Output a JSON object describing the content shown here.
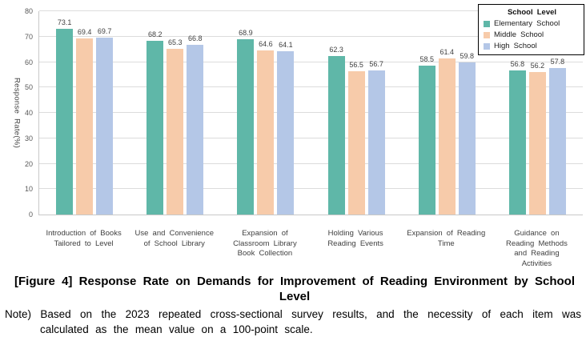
{
  "chart_data": {
    "type": "bar",
    "title": "",
    "xlabel": "",
    "ylabel": "Response Rate(%)",
    "ylim": [
      0,
      80
    ],
    "yticks": [
      0,
      10,
      20,
      30,
      40,
      50,
      60,
      70,
      80
    ],
    "grid": "horizontal",
    "legend": {
      "title": "School Level",
      "position": "top-right"
    },
    "categories": [
      [
        "Introduction of Books",
        "Tailored to Level"
      ],
      [
        "Use and Convenience",
        "of School Library"
      ],
      [
        "Expansion of",
        "Classroom Library",
        "Book Collection"
      ],
      [
        "Holding Various",
        "Reading Events"
      ],
      [
        "Expansion of Reading",
        "Time"
      ],
      [
        "Guidance on",
        "Reading Methods",
        "and Reading",
        "Activities"
      ]
    ],
    "series": [
      {
        "name": "Elementary School",
        "color": "#5fb7a8",
        "values": [
          73.1,
          68.2,
          68.9,
          62.3,
          58.5,
          56.8
        ]
      },
      {
        "name": "Middle School",
        "color": "#f7cbaa",
        "values": [
          69.4,
          65.3,
          64.6,
          56.5,
          61.4,
          56.2
        ]
      },
      {
        "name": "High School",
        "color": "#b4c7e7",
        "values": [
          69.7,
          66.8,
          64.1,
          56.7,
          59.8,
          57.8
        ]
      }
    ],
    "colors": {
      "grid": "#dcdcdc",
      "axis": "#c8c8c8",
      "tick_label": "#595959",
      "value_label": "#3f3f3f",
      "category_label": "#404040",
      "legend_border": "#000000"
    }
  },
  "caption": {
    "lines": [
      "[Figure 4] Response Rate on Demands for Improvement of Reading Environment by School",
      "Level"
    ]
  },
  "note": {
    "lines": [
      "Note) Based on the 2023 repeated cross-sectional survey results, and the necessity of each item was",
      "calculated as the mean value on a 100-point scale."
    ]
  }
}
